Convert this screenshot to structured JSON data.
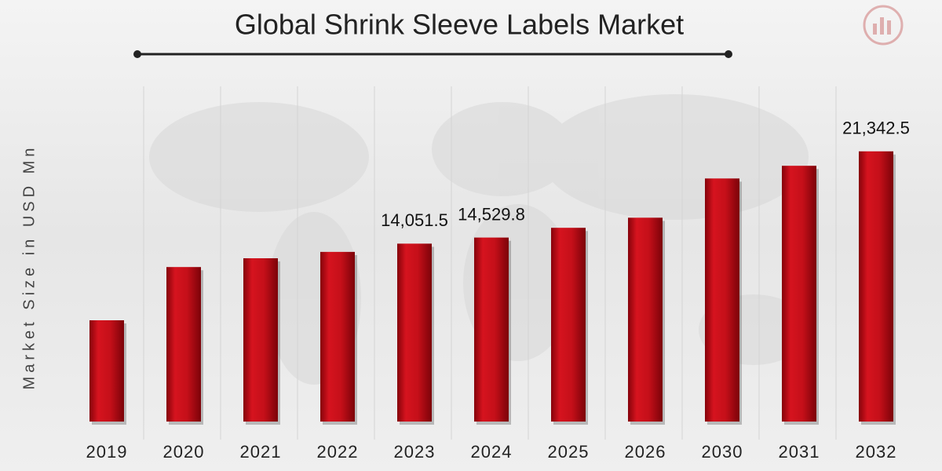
{
  "chart_data": {
    "type": "bar",
    "title": "Global Shrink Sleeve Labels Market",
    "y_label": "Market Size in USD Mn",
    "categories": [
      "2019",
      "2020",
      "2021",
      "2022",
      "2023",
      "2024",
      "2025",
      "2026",
      "2030",
      "2031",
      "2032"
    ],
    "values": [
      8000,
      12200,
      12900,
      13400,
      14051.5,
      14529.8,
      15300,
      16100,
      19200,
      20200,
      21342.5
    ],
    "value_labels": [
      null,
      null,
      null,
      null,
      "14,051.5",
      "14,529.8",
      null,
      null,
      null,
      null,
      "21,342.5"
    ],
    "color": "#c8101a",
    "ylim": [
      0,
      24000
    ]
  }
}
